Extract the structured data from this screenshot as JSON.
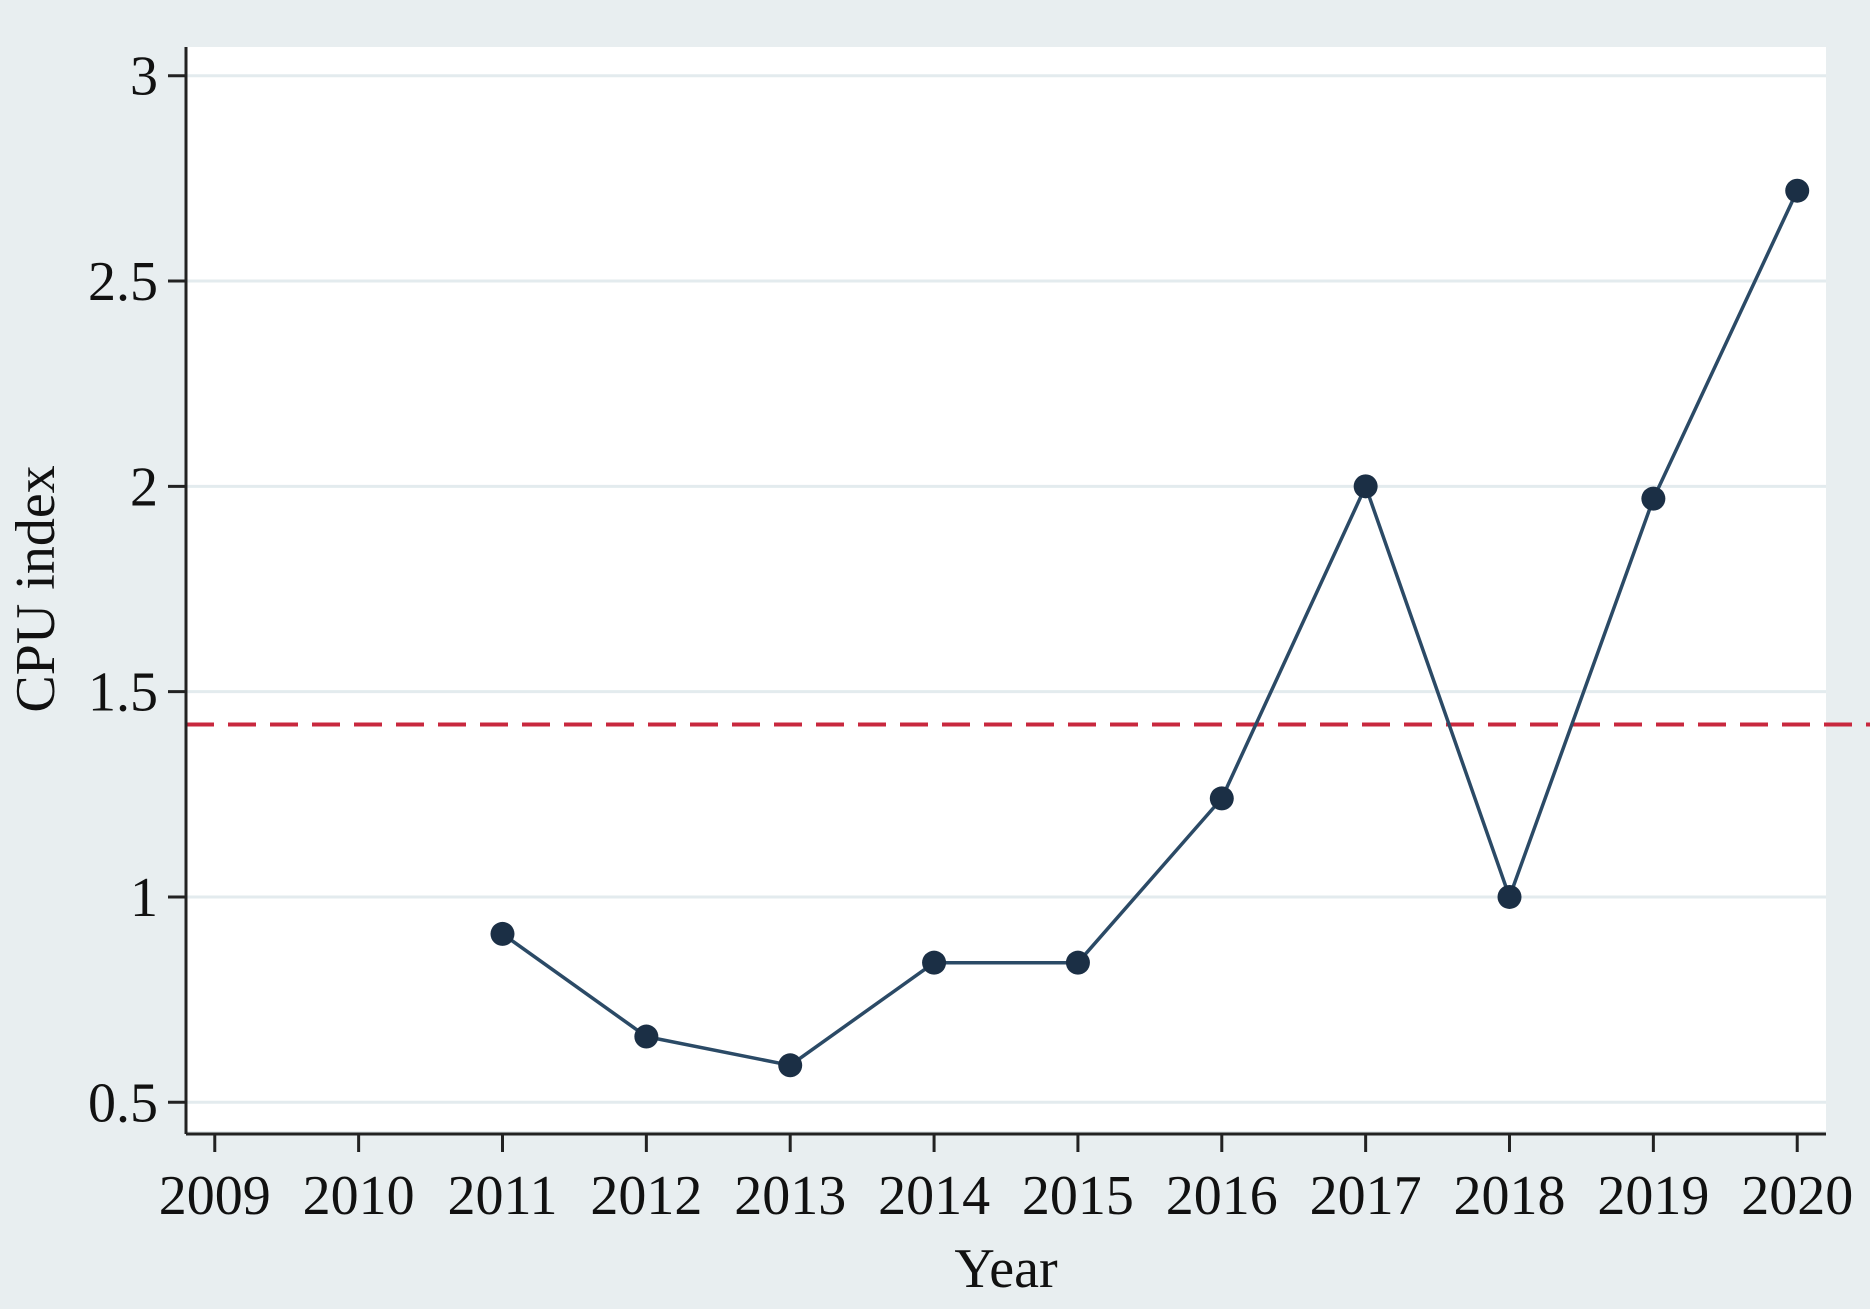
{
  "chart_data": {
    "type": "line",
    "title": "",
    "xlabel": "Year",
    "ylabel": "CPU index",
    "x_ticks": [
      "2009",
      "2010",
      "2011",
      "2012",
      "2013",
      "2014",
      "2015",
      "2016",
      "2017",
      "2018",
      "2019",
      "2020"
    ],
    "y_ticks": [
      "0.5",
      "1",
      "1.5",
      "2",
      "2.5",
      "3"
    ],
    "xlim": [
      2008.8,
      2020.2
    ],
    "ylim": [
      0.43,
      3.07
    ],
    "grid": "horizontal",
    "series": [
      {
        "x": [
          2011,
          2012,
          2013,
          2014,
          2015,
          2016,
          2017,
          2018,
          2019,
          2020
        ],
        "values": [
          0.91,
          0.66,
          0.59,
          0.84,
          0.84,
          1.24,
          2.0,
          1.0,
          1.97,
          2.72
        ],
        "color": "#2b4a66",
        "marker": "circle"
      }
    ],
    "reference_line": {
      "y": 1.42,
      "style": "dashed",
      "color": "#c8283e"
    }
  },
  "colors": {
    "background": "#e8eef0",
    "plot_area": "#ffffff",
    "gridline": "#e3ebee",
    "axis": "#222222"
  }
}
